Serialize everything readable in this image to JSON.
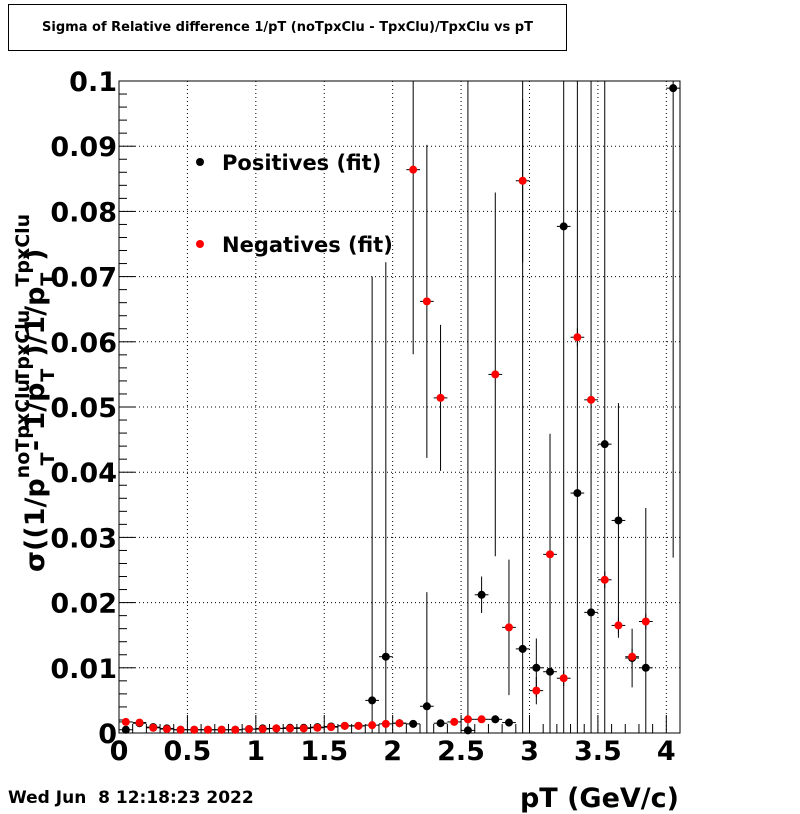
{
  "footer": {
    "datetime": "Wed Jun  8 12:18:23 2022"
  },
  "chart_data": {
    "type": "scatter",
    "title": "Sigma of Relative difference 1/pT (noTpxClu - TpxClu)/TpxClu vs pT",
    "xlabel": "pT (GeV/c)",
    "ylabel": "σ((1/p_T^noTpxClu - 1/p_T^TpxClu)/1/p_T^TpxClu)",
    "xlim": [
      0,
      4.1
    ],
    "ylim": [
      0,
      0.1
    ],
    "x_ticks": [
      "0",
      "0.5",
      "1",
      "1.5",
      "2",
      "2.5",
      "3",
      "3.5",
      "4"
    ],
    "y_ticks": [
      "0",
      "0.01",
      "0.02",
      "0.03",
      "0.04",
      "0.05",
      "0.06",
      "0.07",
      "0.08",
      "0.09",
      "0.1"
    ],
    "grid": true,
    "legend_position": "top-left",
    "series": [
      {
        "name": "Positives (fit)",
        "color": "#000000",
        "points": [
          {
            "x": 0.05,
            "y": 0.0005,
            "err": 0.0003
          },
          {
            "x": 0.15,
            "y": 0.0015,
            "err": 0.0003
          },
          {
            "x": 0.25,
            "y": 0.0009,
            "err": 0.0002
          },
          {
            "x": 0.35,
            "y": 0.0007,
            "err": 0.0002
          },
          {
            "x": 0.45,
            "y": 0.0005,
            "err": 0.0002
          },
          {
            "x": 0.55,
            "y": 0.0005,
            "err": 0.0002
          },
          {
            "x": 0.65,
            "y": 0.0005,
            "err": 0.0002
          },
          {
            "x": 0.75,
            "y": 0.0005,
            "err": 0.0002
          },
          {
            "x": 0.85,
            "y": 0.0005,
            "err": 0.0002
          },
          {
            "x": 0.95,
            "y": 0.0006,
            "err": 0.0002
          },
          {
            "x": 1.05,
            "y": 0.0007,
            "err": 0.0002
          },
          {
            "x": 1.15,
            "y": 0.0007,
            "err": 0.0002
          },
          {
            "x": 1.25,
            "y": 0.0008,
            "err": 0.0002
          },
          {
            "x": 1.35,
            "y": 0.0008,
            "err": 0.0002
          },
          {
            "x": 1.45,
            "y": 0.0009,
            "err": 0.0002
          },
          {
            "x": 1.55,
            "y": 0.001,
            "err": 0.0002
          },
          {
            "x": 1.65,
            "y": 0.0011,
            "err": 0.0003
          },
          {
            "x": 1.75,
            "y": 0.0011,
            "err": 0.0003
          },
          {
            "x": 1.85,
            "y": 0.005,
            "err": 0.065
          },
          {
            "x": 1.95,
            "y": 0.0117,
            "err": 0.0605
          },
          {
            "x": 2.05,
            "y": 0.0015,
            "err": 0.0006
          },
          {
            "x": 2.15,
            "y": 0.0014,
            "err": 0.0005
          },
          {
            "x": 2.25,
            "y": 0.0041,
            "err": 0.0175
          },
          {
            "x": 2.35,
            "y": 0.0015,
            "err": 0.0005
          },
          {
            "x": 2.55,
            "y": 0.0004,
            "err": 0.1
          },
          {
            "x": 2.65,
            "y": 0.0212,
            "err": 0.0028
          },
          {
            "x": 2.75,
            "y": 0.0021,
            "err": 0.0006
          },
          {
            "x": 2.85,
            "y": 0.0016,
            "err": 0.0006
          },
          {
            "x": 2.95,
            "y": 0.0129,
            "err": 0.095
          },
          {
            "x": 3.05,
            "y": 0.01,
            "err": 0.0045
          },
          {
            "x": 3.15,
            "y": 0.0094,
            "err": 0.0125
          },
          {
            "x": 3.25,
            "y": 0.0777,
            "err": 0.1
          },
          {
            "x": 3.35,
            "y": 0.0368,
            "err": 0.1
          },
          {
            "x": 3.45,
            "y": 0.0185,
            "err": 0.1
          },
          {
            "x": 3.55,
            "y": 0.0443,
            "err": 0.1
          },
          {
            "x": 3.65,
            "y": 0.0326,
            "err": 0.018
          },
          {
            "x": 3.75,
            "y": 0.0115,
            "err": 0.0045
          },
          {
            "x": 3.85,
            "y": 0.01,
            "err": 0.0245
          },
          {
            "x": 4.05,
            "y": 0.0989,
            "err": 0.072
          }
        ]
      },
      {
        "name": "Negatives (fit)",
        "color": "#ff0000",
        "points": [
          {
            "x": 0.05,
            "y": 0.0017,
            "err": 0.0003
          },
          {
            "x": 0.15,
            "y": 0.0016,
            "err": 0.0003
          },
          {
            "x": 0.25,
            "y": 0.0008,
            "err": 0.0002
          },
          {
            "x": 0.35,
            "y": 0.0006,
            "err": 0.0002
          },
          {
            "x": 0.45,
            "y": 0.0005,
            "err": 0.0002
          },
          {
            "x": 0.55,
            "y": 0.0005,
            "err": 0.0002
          },
          {
            "x": 0.65,
            "y": 0.0005,
            "err": 0.0002
          },
          {
            "x": 0.75,
            "y": 0.0005,
            "err": 0.0002
          },
          {
            "x": 0.85,
            "y": 0.0005,
            "err": 0.0002
          },
          {
            "x": 0.95,
            "y": 0.0006,
            "err": 0.0002
          },
          {
            "x": 1.05,
            "y": 0.0006,
            "err": 0.0002
          },
          {
            "x": 1.15,
            "y": 0.0007,
            "err": 0.0002
          },
          {
            "x": 1.25,
            "y": 0.0007,
            "err": 0.0002
          },
          {
            "x": 1.35,
            "y": 0.0007,
            "err": 0.0002
          },
          {
            "x": 1.45,
            "y": 0.0008,
            "err": 0.0002
          },
          {
            "x": 1.55,
            "y": 0.0009,
            "err": 0.0002
          },
          {
            "x": 1.65,
            "y": 0.0011,
            "err": 0.0003
          },
          {
            "x": 1.75,
            "y": 0.0011,
            "err": 0.0003
          },
          {
            "x": 1.85,
            "y": 0.0012,
            "err": 0.0003
          },
          {
            "x": 1.95,
            "y": 0.0014,
            "err": 0.0003
          },
          {
            "x": 2.05,
            "y": 0.0015,
            "err": 0.0004
          },
          {
            "x": 2.15,
            "y": 0.0864,
            "err": 0.0283
          },
          {
            "x": 2.25,
            "y": 0.0662,
            "err": 0.024
          },
          {
            "x": 2.35,
            "y": 0.0514,
            "err": 0.0112
          },
          {
            "x": 2.45,
            "y": 0.0017,
            "err": 0.0004
          },
          {
            "x": 2.55,
            "y": 0.0021,
            "err": 0.0005
          },
          {
            "x": 2.65,
            "y": 0.0021,
            "err": 0.0005
          },
          {
            "x": 2.75,
            "y": 0.055,
            "err": 0.0279
          },
          {
            "x": 2.85,
            "y": 0.0162,
            "err": 0.0104
          },
          {
            "x": 2.95,
            "y": 0.0847,
            "err": 0.0125
          },
          {
            "x": 3.05,
            "y": 0.0065,
            "err": 0.0021
          },
          {
            "x": 3.15,
            "y": 0.0274,
            "err": 0.0185
          },
          {
            "x": 3.25,
            "y": 0.0084,
            "err": 0.0012
          },
          {
            "x": 3.35,
            "y": 0.0607,
            "err": 0.0014
          },
          {
            "x": 3.45,
            "y": 0.0511,
            "err": 0.0009
          },
          {
            "x": 3.55,
            "y": 0.0235,
            "err": 0.0013
          },
          {
            "x": 3.65,
            "y": 0.0165,
            "err": 0.0012
          },
          {
            "x": 3.75,
            "y": 0.0117,
            "err": 0.0012
          },
          {
            "x": 3.85,
            "y": 0.0171,
            "err": 0.0012
          }
        ]
      }
    ]
  }
}
